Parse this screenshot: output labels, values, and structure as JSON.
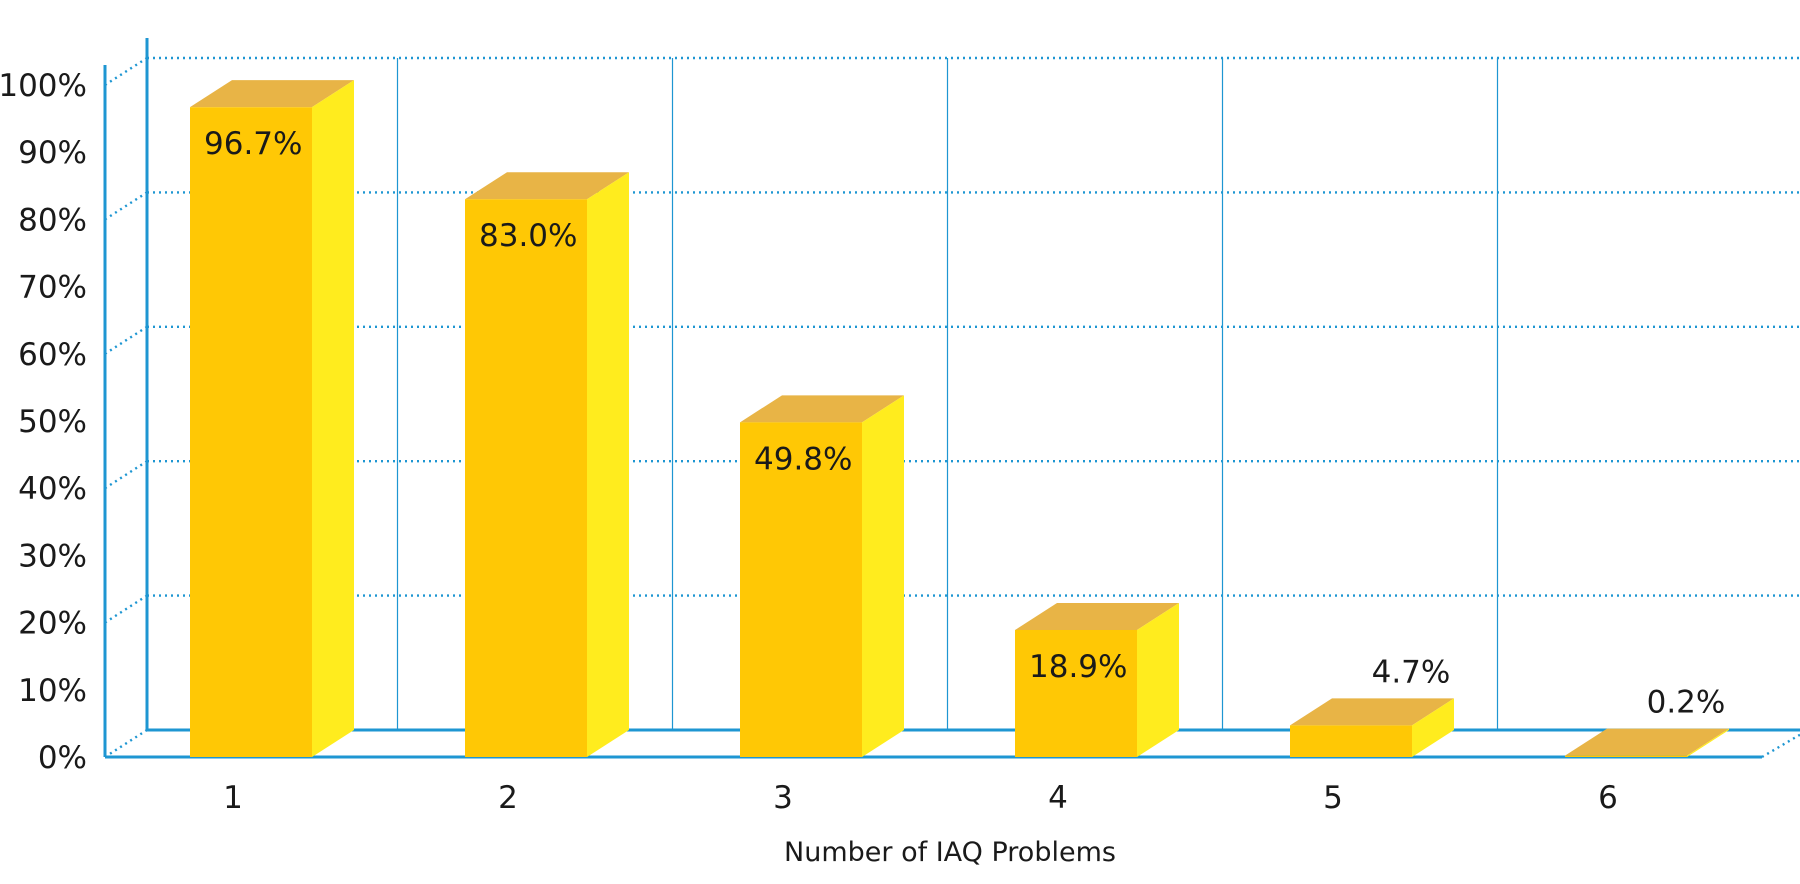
{
  "colors": {
    "axis": "#1e96d2",
    "grid": "#1e96d2",
    "bar_front": "#ffc805",
    "bar_side": "#ffec1e",
    "bar_top": "#e8b446",
    "text": "#1a1a1a"
  },
  "chart_data": {
    "type": "bar",
    "categories": [
      "1",
      "2",
      "3",
      "4",
      "5",
      "6"
    ],
    "values": [
      96.7,
      83.0,
      49.8,
      18.9,
      4.7,
      0.2
    ],
    "data_labels": [
      "96.7%",
      "83.0%",
      "49.8%",
      "18.9%",
      "4.7%",
      "0.2%"
    ],
    "y_ticks": [
      0,
      10,
      20,
      30,
      40,
      50,
      60,
      70,
      80,
      90,
      100
    ],
    "y_tick_labels": [
      "0%",
      "10%",
      "20%",
      "30%",
      "40%",
      "50%",
      "60%",
      "70%",
      "80%",
      "90%",
      "100%"
    ],
    "xlabel": "Number of IAQ Problems",
    "ylabel": "",
    "ylim": [
      0,
      100
    ],
    "grid": true,
    "style": "3d"
  }
}
